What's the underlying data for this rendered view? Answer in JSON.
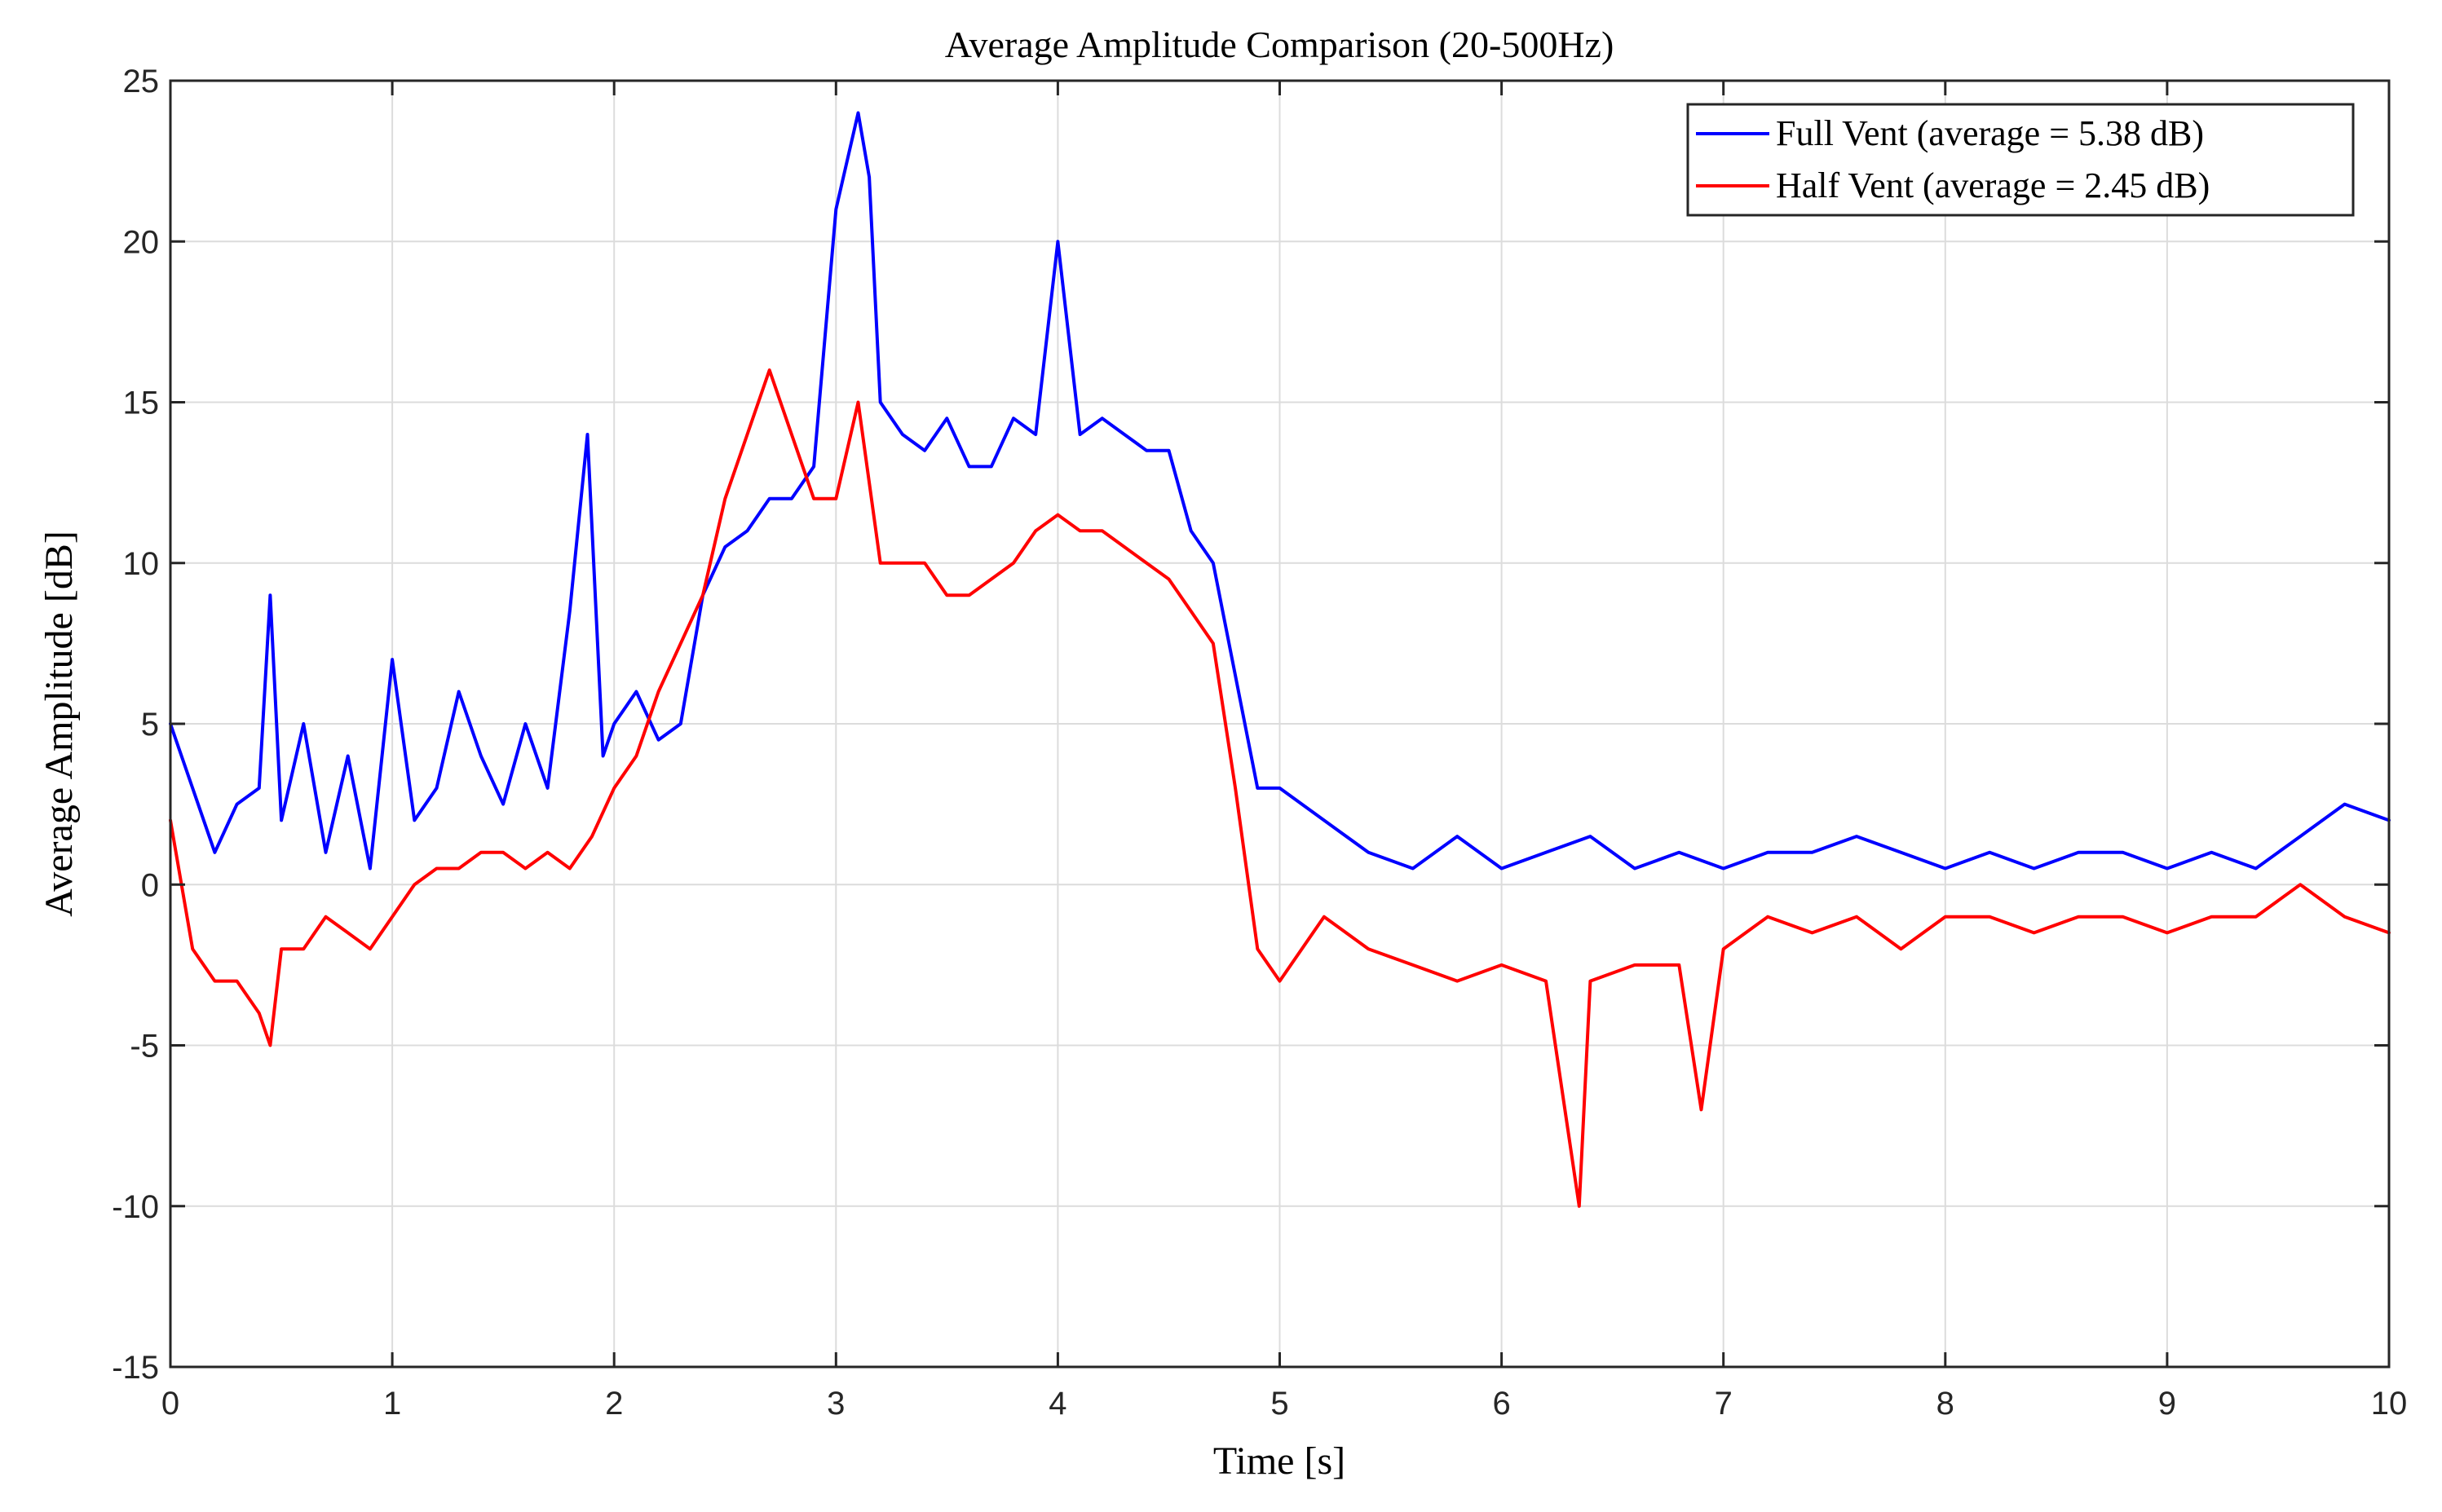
{
  "chart_data": {
    "type": "line",
    "title": "Average Amplitude Comparison (20-500Hz)",
    "xlabel": "Time [s]",
    "ylabel": "Average Amplitude [dB]",
    "xlim": [
      0,
      10
    ],
    "ylim": [
      -15,
      25
    ],
    "xticks": [
      0,
      1,
      2,
      3,
      4,
      5,
      6,
      7,
      8,
      9,
      10
    ],
    "yticks": [
      25,
      20,
      15,
      10,
      5,
      0,
      -5,
      -10,
      -15
    ],
    "grid": true,
    "legend_position": "top-right",
    "series": [
      {
        "name": "Full Vent (average = 5.38 dB)",
        "color": "#0000ff",
        "x": [
          0.0,
          0.1,
          0.2,
          0.3,
          0.4,
          0.45,
          0.5,
          0.6,
          0.7,
          0.8,
          0.9,
          1.0,
          1.1,
          1.2,
          1.3,
          1.4,
          1.5,
          1.6,
          1.7,
          1.8,
          1.88,
          1.95,
          2.0,
          2.1,
          2.2,
          2.3,
          2.4,
          2.5,
          2.6,
          2.7,
          2.8,
          2.9,
          2.95,
          3.0,
          3.05,
          3.1,
          3.15,
          3.2,
          3.3,
          3.4,
          3.5,
          3.6,
          3.7,
          3.8,
          3.9,
          4.0,
          4.1,
          4.2,
          4.3,
          4.4,
          4.5,
          4.6,
          4.7,
          4.8,
          4.9,
          5.0,
          5.2,
          5.4,
          5.6,
          5.8,
          6.0,
          6.2,
          6.4,
          6.6,
          6.8,
          7.0,
          7.2,
          7.4,
          7.6,
          7.8,
          8.0,
          8.2,
          8.4,
          8.6,
          8.8,
          9.0,
          9.2,
          9.4,
          9.6,
          9.8,
          10.0
        ],
        "values": [
          5.0,
          3.0,
          1.0,
          2.5,
          3.0,
          9.0,
          2.0,
          5.0,
          1.0,
          4.0,
          0.5,
          7.0,
          2.0,
          3.0,
          6.0,
          4.0,
          2.5,
          5.0,
          3.0,
          8.5,
          14.0,
          4.0,
          5.0,
          6.0,
          4.5,
          5.0,
          9.0,
          10.5,
          11.0,
          12.0,
          12.0,
          13.0,
          17.0,
          21.0,
          22.5,
          24.0,
          22.0,
          15.0,
          14.0,
          13.5,
          14.5,
          13.0,
          13.0,
          14.5,
          14.0,
          20.0,
          14.0,
          14.5,
          14.0,
          13.5,
          13.5,
          11.0,
          10.0,
          6.5,
          3.0,
          3.0,
          2.0,
          1.0,
          0.5,
          1.5,
          0.5,
          1.0,
          1.5,
          0.5,
          1.0,
          0.5,
          1.0,
          1.0,
          1.5,
          1.0,
          0.5,
          1.0,
          0.5,
          1.0,
          1.0,
          0.5,
          1.0,
          0.5,
          1.5,
          2.5,
          2.0
        ]
      },
      {
        "name": "Half Vent (average = 2.45 dB)",
        "color": "#ff0000",
        "x": [
          0.0,
          0.1,
          0.2,
          0.3,
          0.4,
          0.45,
          0.5,
          0.6,
          0.7,
          0.8,
          0.9,
          1.0,
          1.1,
          1.2,
          1.3,
          1.4,
          1.5,
          1.6,
          1.7,
          1.8,
          1.9,
          2.0,
          2.1,
          2.2,
          2.3,
          2.4,
          2.5,
          2.6,
          2.7,
          2.8,
          2.9,
          3.0,
          3.1,
          3.2,
          3.3,
          3.4,
          3.5,
          3.6,
          3.7,
          3.8,
          3.9,
          4.0,
          4.1,
          4.2,
          4.3,
          4.4,
          4.5,
          4.6,
          4.7,
          4.8,
          4.9,
          5.0,
          5.2,
          5.4,
          5.6,
          5.8,
          6.0,
          6.2,
          6.35,
          6.4,
          6.6,
          6.8,
          6.9,
          7.0,
          7.2,
          7.4,
          7.6,
          7.8,
          8.0,
          8.2,
          8.4,
          8.6,
          8.8,
          9.0,
          9.2,
          9.4,
          9.6,
          9.8,
          10.0
        ],
        "values": [
          2.0,
          -2.0,
          -3.0,
          -3.0,
          -4.0,
          -5.0,
          -2.0,
          -2.0,
          -1.0,
          -1.5,
          -2.0,
          -1.0,
          0.0,
          0.5,
          0.5,
          1.0,
          1.0,
          0.5,
          1.0,
          0.5,
          1.5,
          3.0,
          4.0,
          6.0,
          7.5,
          9.0,
          12.0,
          14.0,
          16.0,
          14.0,
          12.0,
          12.0,
          15.0,
          10.0,
          10.0,
          10.0,
          9.0,
          9.0,
          9.5,
          10.0,
          11.0,
          11.5,
          11.0,
          11.0,
          10.5,
          10.0,
          9.5,
          8.5,
          7.5,
          3.0,
          -2.0,
          -3.0,
          -1.0,
          -2.0,
          -2.5,
          -3.0,
          -2.5,
          -3.0,
          -10.0,
          -3.0,
          -2.5,
          -2.5,
          -7.0,
          -2.0,
          -1.0,
          -1.5,
          -1.0,
          -2.0,
          -1.0,
          -1.0,
          -1.5,
          -1.0,
          -1.0,
          -1.5,
          -1.0,
          -1.0,
          0.0,
          -1.0,
          -1.5
        ]
      }
    ]
  }
}
